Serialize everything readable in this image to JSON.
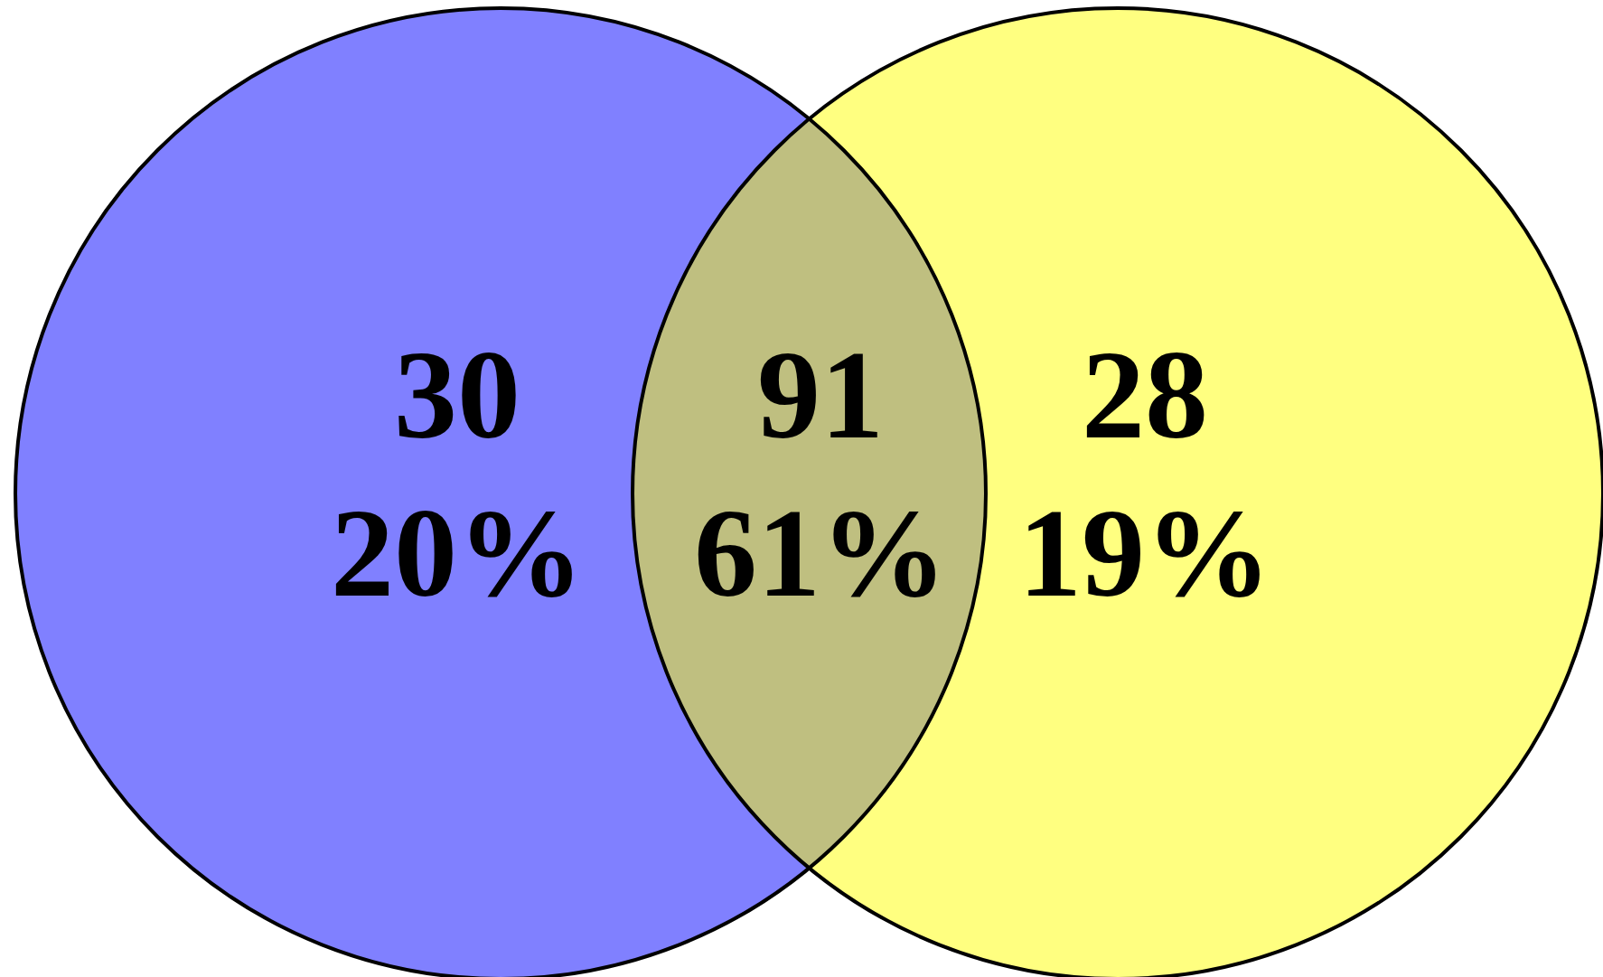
{
  "chart_data": {
    "type": "other",
    "categories": [
      null,
      null,
      null
    ],
    "colors": [
      "#8080ff",
      "#bfbf80",
      "#ffff80"
    ],
    "data_labels": true,
    "values": [
      30,
      91,
      28
    ],
    "annotations": [
      "20%",
      "61%",
      "19%"
    ]
  }
}
